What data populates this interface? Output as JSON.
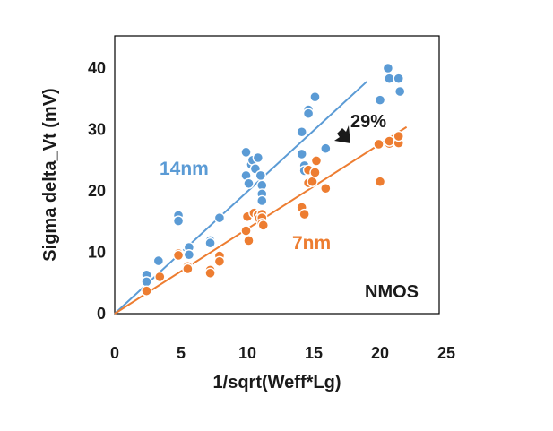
{
  "chart_data": {
    "type": "scatter",
    "title": "",
    "xlabel": "1/sqrt(Weff*Lg)",
    "ylabel": "Sigma delta_Vt (mV)",
    "xlim": [
      0,
      25
    ],
    "ylim": [
      0,
      45
    ],
    "xticks": [
      "0",
      "5",
      "10",
      "15",
      "20",
      "25"
    ],
    "yticks": [
      "0",
      "10",
      "20",
      "30",
      "40"
    ],
    "grid": false,
    "annotations": {
      "reduction": "29%",
      "device": "NMOS"
    },
    "colors": {
      "s14": "#5b9bd5",
      "s7": "#ed7d31",
      "text": "#1a1a1a",
      "frame": "#000000"
    },
    "series": [
      {
        "name": "14nm",
        "color": "#5b9bd5",
        "fit_line": {
          "x": [
            0,
            19
          ],
          "y": [
            0,
            37.8
          ]
        },
        "points": [
          [
            2.4,
            6.3
          ],
          [
            2.4,
            5.2
          ],
          [
            3.3,
            8.6
          ],
          [
            4.8,
            16.0
          ],
          [
            4.8,
            15.1
          ],
          [
            4.9,
            9.6
          ],
          [
            5.6,
            10.8
          ],
          [
            5.6,
            9.6
          ],
          [
            7.2,
            11.9
          ],
          [
            7.2,
            11.5
          ],
          [
            7.9,
            15.6
          ],
          [
            9.9,
            26.3
          ],
          [
            9.9,
            22.5
          ],
          [
            10.1,
            21.2
          ],
          [
            10.3,
            24.3
          ],
          [
            10.4,
            25.0
          ],
          [
            10.6,
            23.6
          ],
          [
            10.8,
            25.4
          ],
          [
            11.0,
            22.5
          ],
          [
            11.1,
            20.9
          ],
          [
            11.1,
            19.5
          ],
          [
            11.1,
            18.4
          ],
          [
            14.1,
            29.6
          ],
          [
            14.1,
            26.0
          ],
          [
            14.3,
            24.1
          ],
          [
            14.3,
            23.3
          ],
          [
            14.6,
            33.2
          ],
          [
            14.6,
            32.6
          ],
          [
            15.1,
            35.3
          ],
          [
            15.9,
            26.9
          ],
          [
            20.0,
            34.8
          ],
          [
            20.6,
            40.0
          ],
          [
            20.7,
            38.3
          ],
          [
            21.4,
            38.3
          ],
          [
            21.5,
            36.2
          ]
        ]
      },
      {
        "name": "7nm",
        "color": "#ed7d31",
        "fit_line": {
          "x": [
            0,
            22
          ],
          "y": [
            0,
            30.4
          ]
        },
        "points": [
          [
            2.4,
            3.7
          ],
          [
            3.4,
            6.0
          ],
          [
            4.8,
            9.8
          ],
          [
            4.8,
            9.5
          ],
          [
            5.5,
            7.7
          ],
          [
            5.5,
            7.3
          ],
          [
            7.2,
            7.1
          ],
          [
            7.2,
            6.6
          ],
          [
            7.9,
            9.4
          ],
          [
            7.9,
            8.5
          ],
          [
            9.9,
            13.5
          ],
          [
            10.0,
            15.8
          ],
          [
            10.1,
            11.9
          ],
          [
            10.5,
            16.4
          ],
          [
            10.8,
            16.1
          ],
          [
            10.9,
            15.5
          ],
          [
            11.1,
            16.2
          ],
          [
            11.1,
            15.6
          ],
          [
            11.1,
            14.7
          ],
          [
            11.2,
            14.4
          ],
          [
            14.1,
            17.3
          ],
          [
            14.3,
            16.2
          ],
          [
            14.6,
            23.4
          ],
          [
            14.6,
            21.3
          ],
          [
            14.9,
            21.5
          ],
          [
            15.1,
            23.0
          ],
          [
            15.2,
            24.9
          ],
          [
            15.9,
            20.4
          ],
          [
            19.9,
            27.6
          ],
          [
            20.0,
            21.5
          ],
          [
            20.7,
            27.7
          ],
          [
            20.7,
            28.1
          ],
          [
            21.4,
            27.8
          ],
          [
            21.4,
            28.9
          ]
        ]
      }
    ]
  }
}
